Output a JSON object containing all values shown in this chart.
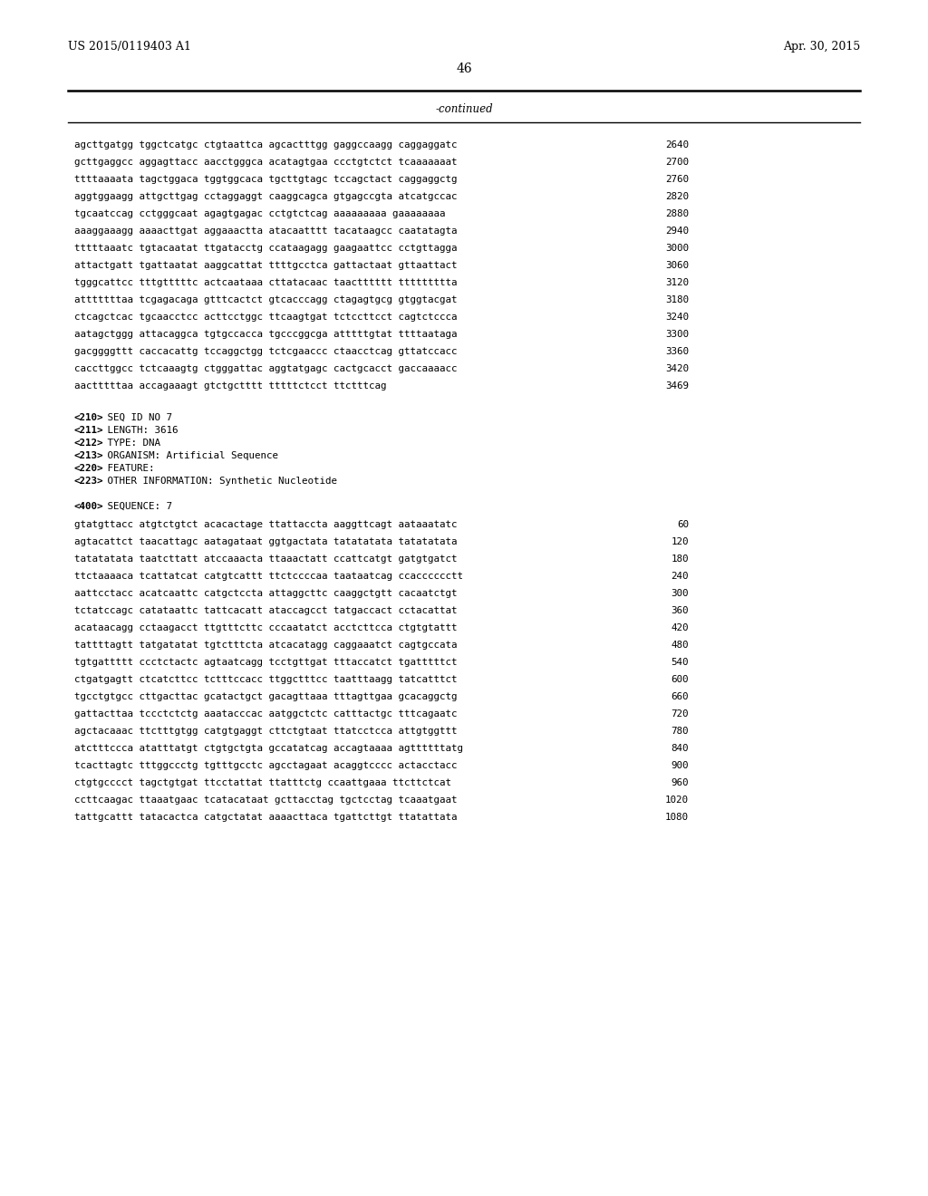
{
  "background_color": "#ffffff",
  "header_left": "US 2015/0119403 A1",
  "header_right": "Apr. 30, 2015",
  "page_number": "46",
  "continued_label": "-continued",
  "sequence_lines_top": [
    {
      "text": "agcttgatgg tggctcatgc ctgtaattca agcactttgg gaggccaagg caggaggatc",
      "num": "2640"
    },
    {
      "text": "gcttgaggcc aggagttacc aacctgggca acatagtgaa ccctgtctct tcaaaaaaat",
      "num": "2700"
    },
    {
      "text": "ttttaaaata tagctggaca tggtggcaca tgcttgtagc tccagctact caggaggctg",
      "num": "2760"
    },
    {
      "text": "aggtggaagg attgcttgag cctaggaggt caaggcagca gtgagccgta atcatgccac",
      "num": "2820"
    },
    {
      "text": "tgcaatccag cctgggcaat agagtgagac cctgtctcag aaaaaaaaa gaaaaaaaa",
      "num": "2880"
    },
    {
      "text": "aaaggaaagg aaaacttgat aggaaactta atacaatttt tacataagcc caatatagta",
      "num": "2940"
    },
    {
      "text": "tttttaaatc tgtacaatat ttgatacctg ccataagagg gaagaattcc cctgttagga",
      "num": "3000"
    },
    {
      "text": "attactgatt tgattaatat aaggcattat ttttgcctca gattactaat gttaattact",
      "num": "3060"
    },
    {
      "text": "tgggcattcc tttgtttttc actcaataaa cttatacaac taactttttt ttttttttta",
      "num": "3120"
    },
    {
      "text": "atttttttaa tcgagacaga gtttcactct gtcacccagg ctagagtgcg gtggtacgat",
      "num": "3180"
    },
    {
      "text": "ctcagctcac tgcaacctcc acttcctggc ttcaagtgat tctccttcct cagtctccca",
      "num": "3240"
    },
    {
      "text": "aatagctggg attacaggca tgtgccacca tgcccggcga atttttgtat ttttaataga",
      "num": "3300"
    },
    {
      "text": "gacggggttt caccacattg tccaggctgg tctcgaaccc ctaacctcag gttatccacc",
      "num": "3360"
    },
    {
      "text": "caccttggcc tctcaaagtg ctgggattac aggtatgagc cactgcacct gaccaaaacc",
      "num": "3420"
    },
    {
      "text": "aactttttaa accagaaagt gtctgctttt tttttctcct ttctttcag",
      "num": "3469"
    }
  ],
  "metadata_lines": [
    "<210> SEQ ID NO 7",
    "<211> LENGTH: 3616",
    "<212> TYPE: DNA",
    "<213> ORGANISM: Artificial Sequence",
    "<220> FEATURE:",
    "<223> OTHER INFORMATION: Synthetic Nucleotide"
  ],
  "sequence_label": "<400> SEQUENCE: 7",
  "sequence_lines_bottom": [
    {
      "text": "gtatgttacc atgtctgtct acacactage ttattaccta aaggttcagt aataaatatc",
      "num": "60"
    },
    {
      "text": "agtacattct taacattagc aatagataat ggtgactata tatatatata tatatatata",
      "num": "120"
    },
    {
      "text": "tatatatata taatcttatt atccaaacta ttaaactatt ccattcatgt gatgtgatct",
      "num": "180"
    },
    {
      "text": "ttctaaaaca tcattatcat catgtcattt ttctccccaa taataatcag ccacccccctt",
      "num": "240"
    },
    {
      "text": "aattcctacc acatcaattc catgctccta attaggcttc caaggctgtt cacaatctgt",
      "num": "300"
    },
    {
      "text": "tctatccagc catataattc tattcacatt ataccagcct tatgaccact cctacattat",
      "num": "360"
    },
    {
      "text": "acataacagg cctaagacct ttgtttcttc cccaatatct acctcttcca ctgtgtattt",
      "num": "420"
    },
    {
      "text": "tattttagtt tatgatatat tgtctttcta atcacatagg caggaaatct cagtgccata",
      "num": "480"
    },
    {
      "text": "tgtgattttt ccctctactc agtaatcagg tcctgttgat tttaccatct tgatttttct",
      "num": "540"
    },
    {
      "text": "ctgatgagtt ctcatcttcc tctttccacc ttggctttcc taatttaagg tatcatttct",
      "num": "600"
    },
    {
      "text": "tgcctgtgcc cttgacttac gcatactgct gacagttaaa tttagttgaa gcacaggctg",
      "num": "660"
    },
    {
      "text": "gattacttaa tccctctctg aaatacccac aatggctctc catttactgc tttcagaatc",
      "num": "720"
    },
    {
      "text": "agctacaaac ttctttgtgg catgtgaggt cttctgtaat ttatcctcca attgtggttt",
      "num": "780"
    },
    {
      "text": "atctttccca atatttatgt ctgtgctgta gccatatcag accagtaaaa agttttttatg",
      "num": "840"
    },
    {
      "text": "tcacttagtc tttggccctg tgtttgcctc agcctagaat acaggtcccc actacctacc",
      "num": "900"
    },
    {
      "text": "ctgtgcccct tagctgtgat ttcctattat ttatttctg ccaattgaaa ttcttctcat",
      "num": "960"
    },
    {
      "text": "ccttcaagac ttaaatgaac tcatacataat gcttacctag tgctcctag tcaaatgaat",
      "num": "1020"
    },
    {
      "text": "tattgcattt tatacactca catgctatat aaaacttaca tgattcttgt ttatattata",
      "num": "1080"
    }
  ]
}
